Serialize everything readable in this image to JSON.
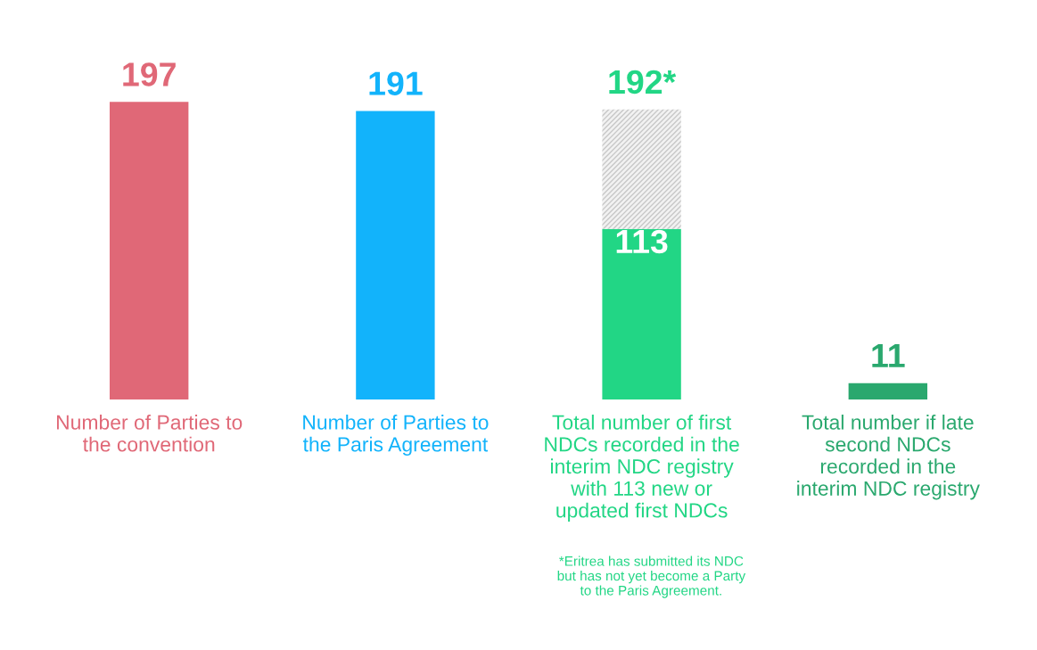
{
  "chart_data": {
    "type": "bar",
    "stacked": true,
    "categories": [
      "Number of Parties to\nthe convention",
      "Number of Parties to\nthe Paris Agreement",
      "Total number of first\nNDCs recorded in the\ninterim NDC registry\nwith 113 new or\nupdated first NDCs",
      "Total number if late\nsecond NDCs\nrecorded in the\ninterim NDC registry"
    ],
    "series": [
      {
        "colors": [
          "#e06877",
          "#12b3fb",
          "#22d685",
          "#2aa86e"
        ],
        "values": [
          197,
          191,
          113,
          11
        ],
        "value_labels": [
          null,
          null,
          "113",
          null
        ]
      },
      {
        "color": "#c8c8c8",
        "values": [
          null,
          null,
          79,
          null
        ]
      }
    ],
    "totals": [
      "197",
      "191",
      "192*",
      "11"
    ],
    "tick_labels": "x",
    "grid": false,
    "annotations": [
      "*Eritrea has submitted its NDC\nbut has not yet become a Party\nto the Paris Agreement."
    ]
  }
}
